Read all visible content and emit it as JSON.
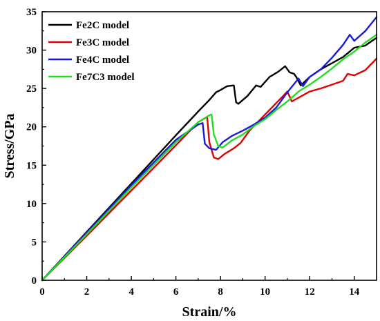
{
  "chart_data": {
    "type": "line",
    "title": "",
    "xlabel": "Strain/%",
    "ylabel": "Stress/GPa",
    "xlim": [
      0,
      15
    ],
    "ylim": [
      0,
      35
    ],
    "xticks": [
      0,
      2,
      4,
      6,
      8,
      10,
      12,
      14
    ],
    "yticks": [
      0,
      5,
      10,
      15,
      20,
      25,
      30,
      35
    ],
    "grid": false,
    "legend_position": "top-left",
    "series": [
      {
        "name": "Fe2C model",
        "color": "#000000",
        "x": [
          0,
          2,
          4,
          6,
          7,
          7.5,
          7.8,
          8.0,
          8.3,
          8.6,
          8.7,
          8.8,
          9.2,
          9.6,
          9.8,
          10.2,
          10.6,
          10.9,
          11.1,
          11.3,
          11.4,
          11.6,
          12.0,
          12.5,
          13.0,
          13.5,
          14.0,
          14.5,
          15.0
        ],
        "y": [
          0,
          6.3,
          12.6,
          18.9,
          22.0,
          23.5,
          24.5,
          24.8,
          25.3,
          25.4,
          23.2,
          23.0,
          24.0,
          25.4,
          25.2,
          26.5,
          27.2,
          27.9,
          27.1,
          26.9,
          26.5,
          25.4,
          26.5,
          27.5,
          28.3,
          29.1,
          30.3,
          30.6,
          31.6
        ]
      },
      {
        "name": "Fe3C model",
        "color": "#e00000",
        "x": [
          0,
          2,
          4,
          6,
          7,
          7.4,
          7.5,
          7.7,
          7.9,
          8.2,
          8.6,
          8.9,
          9.3,
          9.8,
          10.3,
          10.8,
          11.0,
          11.2,
          11.5,
          12.0,
          12.5,
          13.0,
          13.5,
          13.7,
          14.0,
          14.5,
          15.0
        ],
        "y": [
          0,
          5.8,
          11.7,
          17.6,
          20.6,
          21.3,
          18.0,
          16.0,
          15.8,
          16.5,
          17.2,
          17.9,
          19.5,
          21.0,
          22.5,
          24.0,
          24.6,
          23.3,
          23.8,
          24.6,
          25.0,
          25.5,
          26.0,
          26.9,
          26.7,
          27.4,
          28.9
        ]
      },
      {
        "name": "Fe4C model",
        "color": "#1a1adc",
        "x": [
          0,
          2,
          4,
          6,
          7,
          7.2,
          7.3,
          7.5,
          7.8,
          8.1,
          8.5,
          9.0,
          9.5,
          10.0,
          10.5,
          11.0,
          11.5,
          11.7,
          12.0,
          12.5,
          13.0,
          13.5,
          13.8,
          14.0,
          14.5,
          15.0
        ],
        "y": [
          0,
          6.2,
          12.4,
          18.3,
          20.3,
          20.5,
          17.8,
          17.2,
          17.0,
          18.0,
          18.8,
          19.5,
          20.3,
          21.2,
          22.5,
          24.5,
          26.3,
          25.3,
          26.5,
          27.5,
          29.0,
          30.7,
          32.0,
          31.2,
          32.5,
          34.3
        ]
      },
      {
        "name": "Fe7C3 model",
        "color": "#22dd22",
        "x": [
          0,
          2,
          4,
          6,
          7,
          7.5,
          7.6,
          7.7,
          7.9,
          8.1,
          8.5,
          9.0,
          9.5,
          10.0,
          10.5,
          11.0,
          11.5,
          12.0,
          12.5,
          13.0,
          13.5,
          14.0,
          14.5,
          15.0
        ],
        "y": [
          0,
          6.0,
          12.1,
          18.0,
          20.6,
          21.5,
          21.6,
          19.0,
          17.5,
          17.3,
          18.2,
          19.0,
          20.1,
          21.0,
          22.2,
          23.3,
          24.6,
          25.5,
          26.5,
          27.6,
          28.8,
          29.8,
          31.0,
          32.0
        ]
      }
    ]
  }
}
